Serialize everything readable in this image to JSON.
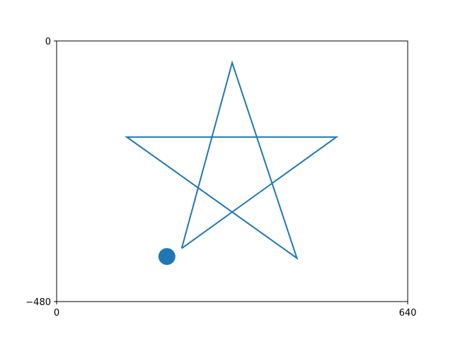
{
  "chart_data": {
    "type": "line",
    "title": "",
    "xlabel": "",
    "ylabel": "",
    "xlim": [
      0,
      640
    ],
    "ylim": [
      -480,
      0
    ],
    "grid": false,
    "legend": "none",
    "x_ticks": [
      {
        "value": 0,
        "label": "0"
      },
      {
        "value": 640,
        "label": "640"
      }
    ],
    "y_ticks": [
      {
        "value": 0,
        "label": "0"
      },
      {
        "value": -480,
        "label": "−480"
      }
    ],
    "series": [
      {
        "color": "#1f77b4",
        "points": [
          {
            "x": 228,
            "y": -382
          },
          {
            "x": 320,
            "y": -40
          },
          {
            "x": 438,
            "y": -400
          },
          {
            "x": 128,
            "y": -177
          },
          {
            "x": 510,
            "y": -177
          },
          {
            "x": 228,
            "y": -382
          }
        ]
      }
    ],
    "marker": {
      "x": 201,
      "y": -397,
      "color": "#1f77b4"
    }
  }
}
